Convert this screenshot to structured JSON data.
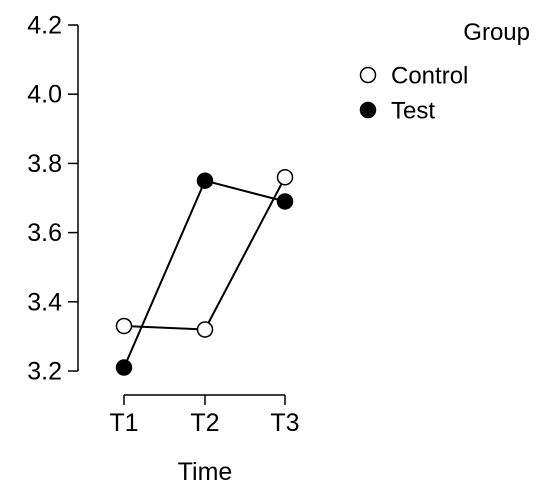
{
  "chart_data": {
    "type": "line",
    "categories": [
      "T1",
      "T2",
      "T3"
    ],
    "series": [
      {
        "name": "Control",
        "values": [
          3.33,
          3.32,
          3.76
        ],
        "marker": "open-circle",
        "color": "#000000"
      },
      {
        "name": "Test",
        "values": [
          3.21,
          3.75,
          3.69
        ],
        "marker": "filled-circle",
        "color": "#000000"
      }
    ],
    "title": "",
    "xlabel": "Time",
    "ylabel": "",
    "ylim": [
      3.2,
      4.2
    ],
    "yticks": [
      "3.2",
      "3.4",
      "3.6",
      "3.8",
      "4.0",
      "4.2"
    ],
    "legend_title": "Group",
    "legend_position": "top-right",
    "grid": false
  }
}
